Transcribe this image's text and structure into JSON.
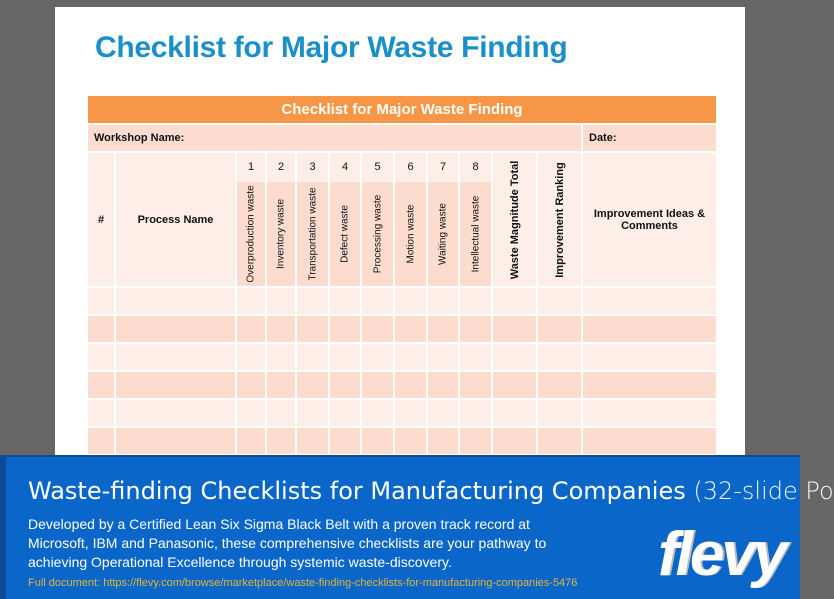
{
  "slide": {
    "title": "Checklist for Major Waste Finding"
  },
  "table": {
    "header": "Checklist for Major Waste Finding",
    "workshop_label": "Workshop Name:",
    "date_label": "Date:",
    "col_hash": "#",
    "col_process": "Process Name",
    "wastes": [
      {
        "num": "1",
        "label": "Overproduction waste"
      },
      {
        "num": "2",
        "label": "Inventory waste"
      },
      {
        "num": "3",
        "label": "Transportation waste"
      },
      {
        "num": "4",
        "label": "Defect waste"
      },
      {
        "num": "5",
        "label": "Processing waste"
      },
      {
        "num": "6",
        "label": "Motion waste"
      },
      {
        "num": "7",
        "label": "Waiting waste"
      },
      {
        "num": "8",
        "label": "Intellectual waste"
      }
    ],
    "col_total": "Waste Magnitude Total",
    "col_ranking": "Improvement Ranking",
    "col_ideas": "Improvement Ideas & Comments"
  },
  "banner": {
    "title": "Waste-finding Checklists for Manufacturing Companies",
    "title_suffix": " (32-slide Po",
    "description": "Developed by a Certified Lean Six Sigma Black Belt with a proven track record at Microsoft, IBM and Panasonic, these comprehensive checklists are your pathway to achieving Operational Excellence through systemic waste-discovery.",
    "link": "Full document: https://flevy.com/browse/marketplace/waste-finding-checklists-for-manufacturing-companies-5476",
    "logo": "flevy"
  }
}
